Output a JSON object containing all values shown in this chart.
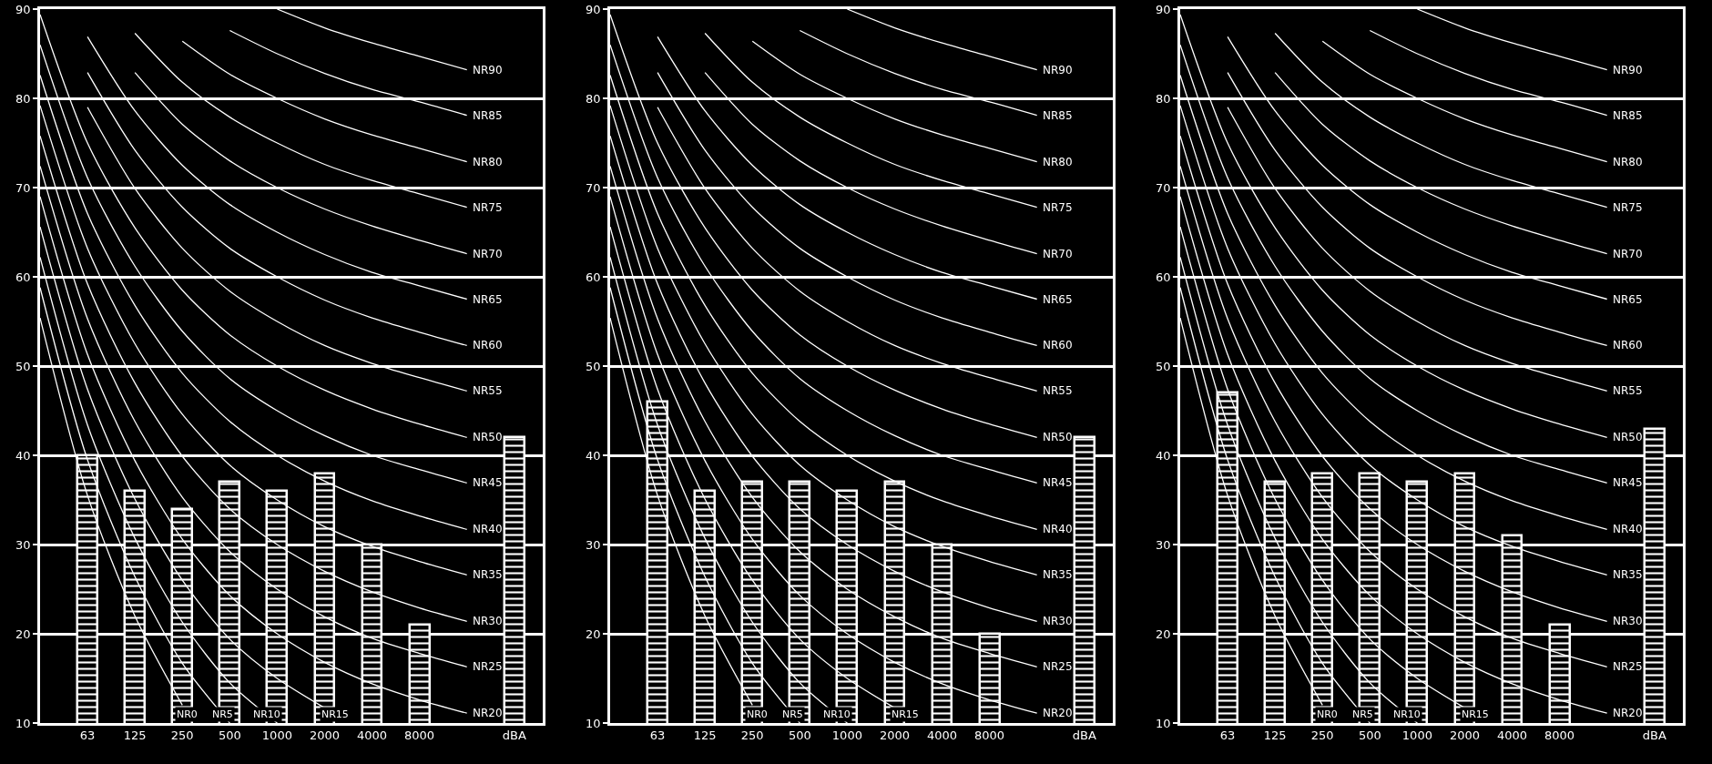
{
  "chart_data": [
    {
      "type": "bar",
      "categories": [
        null,
        "63",
        "125",
        "250",
        "500",
        "1000",
        "2000",
        "4000",
        "8000",
        null,
        "dBA"
      ],
      "ylim": [
        10,
        90
      ],
      "yticks": [
        10,
        20,
        30,
        40,
        50,
        60,
        70,
        80,
        90
      ],
      "grid": "y",
      "series": [
        {
          "color": "#ffffff",
          "values": [
            null,
            40,
            36,
            34,
            37,
            36,
            38,
            30,
            21,
            null,
            42
          ]
        },
        {
          "type": "line",
          "name": "NR0",
          "color": "#ffffff",
          "values": [
            55.4,
            35.5,
            22,
            12,
            null,
            null,
            null,
            null,
            null,
            null,
            null
          ]
        },
        {
          "type": "line",
          "name": "NR5",
          "color": "#ffffff",
          "values": [
            58.8,
            39.5,
            26.4,
            16.7,
            10,
            null,
            null,
            null,
            null,
            null,
            null
          ]
        },
        {
          "type": "line",
          "name": "NR10",
          "color": "#ffffff",
          "values": [
            62.2,
            43.4,
            30.7,
            21.3,
            14.5,
            10,
            null,
            null,
            null,
            null,
            null
          ]
        },
        {
          "type": "line",
          "name": "NR15",
          "color": "#ffffff",
          "values": [
            65.6,
            47.4,
            35.1,
            26.0,
            19.4,
            15,
            11.7,
            null,
            null,
            null,
            null
          ]
        },
        {
          "type": "line",
          "name": "NR20",
          "color": "#ffffff",
          "values": [
            69.0,
            51.3,
            39.4,
            30.6,
            24.3,
            20,
            16.8,
            14.4,
            12.6,
            11.1,
            null
          ]
        },
        {
          "type": "line",
          "name": "NR25",
          "color": "#ffffff",
          "values": [
            72.4,
            55.3,
            43.8,
            35.3,
            29.2,
            25,
            21.9,
            19.5,
            17.8,
            16.3,
            null
          ]
        },
        {
          "type": "line",
          "name": "NR30",
          "color": "#ffffff",
          "values": [
            75.8,
            59.2,
            48.1,
            39.9,
            34.0,
            30,
            27.0,
            24.7,
            22.9,
            21.4,
            null
          ]
        },
        {
          "type": "line",
          "name": "NR35",
          "color": "#ffffff",
          "values": [
            79.2,
            63.2,
            52.5,
            44.6,
            38.9,
            35,
            32.0,
            29.8,
            28.1,
            26.6,
            null
          ]
        },
        {
          "type": "line",
          "name": "NR40",
          "color": "#ffffff",
          "values": [
            82.6,
            67.1,
            56.8,
            49.2,
            43.8,
            40,
            37.1,
            34.9,
            33.2,
            31.7,
            null
          ]
        },
        {
          "type": "line",
          "name": "NR45",
          "color": "#ffffff",
          "values": [
            86.0,
            71.1,
            61.2,
            53.9,
            48.6,
            45,
            42.2,
            40.0,
            38.4,
            36.9,
            null
          ]
        },
        {
          "type": "line",
          "name": "NR50",
          "color": "#ffffff",
          "values": [
            89.4,
            75.0,
            65.5,
            58.5,
            53.5,
            50,
            47.3,
            45.2,
            43.5,
            42.0,
            null
          ]
        },
        {
          "type": "line",
          "name": "NR55",
          "color": "#ffffff",
          "values": [
            null,
            79.0,
            69.9,
            63.2,
            58.4,
            55,
            52.3,
            50.3,
            48.7,
            47.2,
            null
          ]
        },
        {
          "type": "line",
          "name": "NR60",
          "color": "#ffffff",
          "values": [
            null,
            82.9,
            74.2,
            67.8,
            63.2,
            60,
            57.4,
            55.4,
            53.8,
            52.3,
            null
          ]
        },
        {
          "type": "line",
          "name": "NR65",
          "color": "#ffffff",
          "values": [
            null,
            86.9,
            78.6,
            72.5,
            68.1,
            65,
            62.5,
            60.5,
            59.0,
            57.5,
            null
          ]
        },
        {
          "type": "line",
          "name": "NR70",
          "color": "#ffffff",
          "values": [
            null,
            null,
            82.9,
            77.1,
            73.0,
            70,
            67.6,
            65.7,
            64.1,
            62.6,
            null
          ]
        },
        {
          "type": "line",
          "name": "NR75",
          "color": "#ffffff",
          "values": [
            null,
            null,
            87.3,
            81.8,
            77.9,
            75,
            72.6,
            70.8,
            69.3,
            67.8,
            null
          ]
        },
        {
          "type": "line",
          "name": "NR80",
          "color": "#ffffff",
          "values": [
            null,
            null,
            null,
            86.4,
            82.7,
            80,
            77.7,
            75.9,
            74.4,
            72.9,
            null
          ]
        },
        {
          "type": "line",
          "name": "NR85",
          "color": "#ffffff",
          "values": [
            null,
            null,
            null,
            null,
            87.6,
            85,
            82.8,
            81.0,
            79.6,
            78.1,
            null
          ]
        },
        {
          "type": "line",
          "name": "NR90",
          "color": "#ffffff",
          "values": [
            null,
            null,
            null,
            null,
            null,
            90,
            87.9,
            86.2,
            84.7,
            83.2,
            null
          ]
        }
      ]
    },
    {
      "type": "bar",
      "categories": [
        null,
        "63",
        "125",
        "250",
        "500",
        "1000",
        "2000",
        "4000",
        "8000",
        null,
        "dBA"
      ],
      "ylim": [
        10,
        90
      ],
      "yticks": [
        10,
        20,
        30,
        40,
        50,
        60,
        70,
        80,
        90
      ],
      "grid": "y",
      "series": [
        {
          "color": "#ffffff",
          "values": [
            null,
            46,
            36,
            37,
            37,
            36,
            37,
            30,
            20,
            null,
            42
          ]
        },
        {
          "type": "line",
          "name": "NR0",
          "color": "#ffffff",
          "values": [
            55.4,
            35.5,
            22,
            12,
            null,
            null,
            null,
            null,
            null,
            null,
            null
          ]
        },
        {
          "type": "line",
          "name": "NR5",
          "color": "#ffffff",
          "values": [
            58.8,
            39.5,
            26.4,
            16.7,
            10,
            null,
            null,
            null,
            null,
            null,
            null
          ]
        },
        {
          "type": "line",
          "name": "NR10",
          "color": "#ffffff",
          "values": [
            62.2,
            43.4,
            30.7,
            21.3,
            14.5,
            10,
            null,
            null,
            null,
            null,
            null
          ]
        },
        {
          "type": "line",
          "name": "NR15",
          "color": "#ffffff",
          "values": [
            65.6,
            47.4,
            35.1,
            26.0,
            19.4,
            15,
            11.7,
            null,
            null,
            null,
            null
          ]
        },
        {
          "type": "line",
          "name": "NR20",
          "color": "#ffffff",
          "values": [
            69.0,
            51.3,
            39.4,
            30.6,
            24.3,
            20,
            16.8,
            14.4,
            12.6,
            11.1,
            null
          ]
        },
        {
          "type": "line",
          "name": "NR25",
          "color": "#ffffff",
          "values": [
            72.4,
            55.3,
            43.8,
            35.3,
            29.2,
            25,
            21.9,
            19.5,
            17.8,
            16.3,
            null
          ]
        },
        {
          "type": "line",
          "name": "NR30",
          "color": "#ffffff",
          "values": [
            75.8,
            59.2,
            48.1,
            39.9,
            34.0,
            30,
            27.0,
            24.7,
            22.9,
            21.4,
            null
          ]
        },
        {
          "type": "line",
          "name": "NR35",
          "color": "#ffffff",
          "values": [
            79.2,
            63.2,
            52.5,
            44.6,
            38.9,
            35,
            32.0,
            29.8,
            28.1,
            26.6,
            null
          ]
        },
        {
          "type": "line",
          "name": "NR40",
          "color": "#ffffff",
          "values": [
            82.6,
            67.1,
            56.8,
            49.2,
            43.8,
            40,
            37.1,
            34.9,
            33.2,
            31.7,
            null
          ]
        },
        {
          "type": "line",
          "name": "NR45",
          "color": "#ffffff",
          "values": [
            86.0,
            71.1,
            61.2,
            53.9,
            48.6,
            45,
            42.2,
            40.0,
            38.4,
            36.9,
            null
          ]
        },
        {
          "type": "line",
          "name": "NR50",
          "color": "#ffffff",
          "values": [
            89.4,
            75.0,
            65.5,
            58.5,
            53.5,
            50,
            47.3,
            45.2,
            43.5,
            42.0,
            null
          ]
        },
        {
          "type": "line",
          "name": "NR55",
          "color": "#ffffff",
          "values": [
            null,
            79.0,
            69.9,
            63.2,
            58.4,
            55,
            52.3,
            50.3,
            48.7,
            47.2,
            null
          ]
        },
        {
          "type": "line",
          "name": "NR60",
          "color": "#ffffff",
          "values": [
            null,
            82.9,
            74.2,
            67.8,
            63.2,
            60,
            57.4,
            55.4,
            53.8,
            52.3,
            null
          ]
        },
        {
          "type": "line",
          "name": "NR65",
          "color": "#ffffff",
          "values": [
            null,
            86.9,
            78.6,
            72.5,
            68.1,
            65,
            62.5,
            60.5,
            59.0,
            57.5,
            null
          ]
        },
        {
          "type": "line",
          "name": "NR70",
          "color": "#ffffff",
          "values": [
            null,
            null,
            82.9,
            77.1,
            73.0,
            70,
            67.6,
            65.7,
            64.1,
            62.6,
            null
          ]
        },
        {
          "type": "line",
          "name": "NR75",
          "color": "#ffffff",
          "values": [
            null,
            null,
            87.3,
            81.8,
            77.9,
            75,
            72.6,
            70.8,
            69.3,
            67.8,
            null
          ]
        },
        {
          "type": "line",
          "name": "NR80",
          "color": "#ffffff",
          "values": [
            null,
            null,
            null,
            86.4,
            82.7,
            80,
            77.7,
            75.9,
            74.4,
            72.9,
            null
          ]
        },
        {
          "type": "line",
          "name": "NR85",
          "color": "#ffffff",
          "values": [
            null,
            null,
            null,
            null,
            87.6,
            85,
            82.8,
            81.0,
            79.6,
            78.1,
            null
          ]
        },
        {
          "type": "line",
          "name": "NR90",
          "color": "#ffffff",
          "values": [
            null,
            null,
            null,
            null,
            null,
            90,
            87.9,
            86.2,
            84.7,
            83.2,
            null
          ]
        }
      ]
    },
    {
      "type": "bar",
      "categories": [
        null,
        "63",
        "125",
        "250",
        "500",
        "1000",
        "2000",
        "4000",
        "8000",
        null,
        "dBA"
      ],
      "ylim": [
        10,
        90
      ],
      "yticks": [
        10,
        20,
        30,
        40,
        50,
        60,
        70,
        80,
        90
      ],
      "grid": "y",
      "series": [
        {
          "color": "#ffffff",
          "values": [
            null,
            47,
            37,
            38,
            38,
            37,
            38,
            31,
            21,
            null,
            43
          ]
        },
        {
          "type": "line",
          "name": "NR0",
          "color": "#ffffff",
          "values": [
            55.4,
            35.5,
            22,
            12,
            null,
            null,
            null,
            null,
            null,
            null,
            null
          ]
        },
        {
          "type": "line",
          "name": "NR5",
          "color": "#ffffff",
          "values": [
            58.8,
            39.5,
            26.4,
            16.7,
            10,
            null,
            null,
            null,
            null,
            null,
            null
          ]
        },
        {
          "type": "line",
          "name": "NR10",
          "color": "#ffffff",
          "values": [
            62.2,
            43.4,
            30.7,
            21.3,
            14.5,
            10,
            null,
            null,
            null,
            null,
            null
          ]
        },
        {
          "type": "line",
          "name": "NR15",
          "color": "#ffffff",
          "values": [
            65.6,
            47.4,
            35.1,
            26.0,
            19.4,
            15,
            11.7,
            null,
            null,
            null,
            null
          ]
        },
        {
          "type": "line",
          "name": "NR20",
          "color": "#ffffff",
          "values": [
            69.0,
            51.3,
            39.4,
            30.6,
            24.3,
            20,
            16.8,
            14.4,
            12.6,
            11.1,
            null
          ]
        },
        {
          "type": "line",
          "name": "NR25",
          "color": "#ffffff",
          "values": [
            72.4,
            55.3,
            43.8,
            35.3,
            29.2,
            25,
            21.9,
            19.5,
            17.8,
            16.3,
            null
          ]
        },
        {
          "type": "line",
          "name": "NR30",
          "color": "#ffffff",
          "values": [
            75.8,
            59.2,
            48.1,
            39.9,
            34.0,
            30,
            27.0,
            24.7,
            22.9,
            21.4,
            null
          ]
        },
        {
          "type": "line",
          "name": "NR35",
          "color": "#ffffff",
          "values": [
            79.2,
            63.2,
            52.5,
            44.6,
            38.9,
            35,
            32.0,
            29.8,
            28.1,
            26.6,
            null
          ]
        },
        {
          "type": "line",
          "name": "NR40",
          "color": "#ffffff",
          "values": [
            82.6,
            67.1,
            56.8,
            49.2,
            43.8,
            40,
            37.1,
            34.9,
            33.2,
            31.7,
            null
          ]
        },
        {
          "type": "line",
          "name": "NR45",
          "color": "#ffffff",
          "values": [
            86.0,
            71.1,
            61.2,
            53.9,
            48.6,
            45,
            42.2,
            40.0,
            38.4,
            36.9,
            null
          ]
        },
        {
          "type": "line",
          "name": "NR50",
          "color": "#ffffff",
          "values": [
            89.4,
            75.0,
            65.5,
            58.5,
            53.5,
            50,
            47.3,
            45.2,
            43.5,
            42.0,
            null
          ]
        },
        {
          "type": "line",
          "name": "NR55",
          "color": "#ffffff",
          "values": [
            null,
            79.0,
            69.9,
            63.2,
            58.4,
            55,
            52.3,
            50.3,
            48.7,
            47.2,
            null
          ]
        },
        {
          "type": "line",
          "name": "NR60",
          "color": "#ffffff",
          "values": [
            null,
            82.9,
            74.2,
            67.8,
            63.2,
            60,
            57.4,
            55.4,
            53.8,
            52.3,
            null
          ]
        },
        {
          "type": "line",
          "name": "NR65",
          "color": "#ffffff",
          "values": [
            null,
            86.9,
            78.6,
            72.5,
            68.1,
            65,
            62.5,
            60.5,
            59.0,
            57.5,
            null
          ]
        },
        {
          "type": "line",
          "name": "NR70",
          "color": "#ffffff",
          "values": [
            null,
            null,
            82.9,
            77.1,
            73.0,
            70,
            67.6,
            65.7,
            64.1,
            62.6,
            null
          ]
        },
        {
          "type": "line",
          "name": "NR75",
          "color": "#ffffff",
          "values": [
            null,
            null,
            87.3,
            81.8,
            77.9,
            75,
            72.6,
            70.8,
            69.3,
            67.8,
            null
          ]
        },
        {
          "type": "line",
          "name": "NR80",
          "color": "#ffffff",
          "values": [
            null,
            null,
            null,
            86.4,
            82.7,
            80,
            77.7,
            75.9,
            74.4,
            72.9,
            null
          ]
        },
        {
          "type": "line",
          "name": "NR85",
          "color": "#ffffff",
          "values": [
            null,
            null,
            null,
            null,
            87.6,
            85,
            82.8,
            81.0,
            79.6,
            78.1,
            null
          ]
        },
        {
          "type": "line",
          "name": "NR90",
          "color": "#ffffff",
          "values": [
            null,
            null,
            null,
            null,
            null,
            90,
            87.9,
            86.2,
            84.7,
            83.2,
            null
          ]
        }
      ]
    }
  ]
}
